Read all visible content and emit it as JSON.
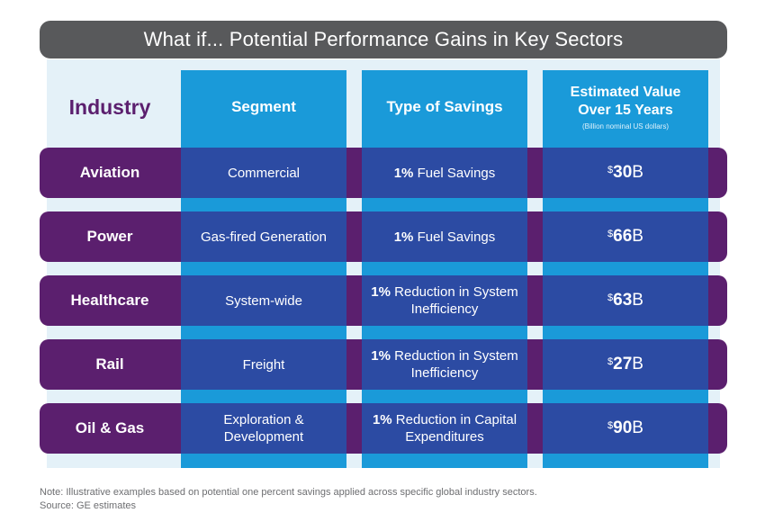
{
  "title": "What if... Potential Performance Gains in Key Sectors",
  "headers": {
    "industry": "Industry",
    "segment": "Segment",
    "savings": "Type of Savings",
    "value_line1": "Estimated Value",
    "value_line2": "Over 15 Years",
    "value_sub": "(Billion nominal US dollars)"
  },
  "rows": [
    {
      "industry": "Aviation",
      "segment": "Commercial",
      "savings_pct": "1%",
      "savings_text": "Fuel Savings",
      "currency": "$",
      "value": "30",
      "unit": "B"
    },
    {
      "industry": "Power",
      "segment": "Gas-fired Generation",
      "savings_pct": "1%",
      "savings_text": "Fuel Savings",
      "currency": "$",
      "value": "66",
      "unit": "B"
    },
    {
      "industry": "Healthcare",
      "segment": "System-wide",
      "savings_pct": "1%",
      "savings_text": "Reduction in System Inefficiency",
      "currency": "$",
      "value": "63",
      "unit": "B"
    },
    {
      "industry": "Rail",
      "segment": "Freight",
      "savings_pct": "1%",
      "savings_text": "Reduction in System Inefficiency",
      "currency": "$",
      "value": "27",
      "unit": "B"
    },
    {
      "industry": "Oil & Gas",
      "segment": "Exploration & Development",
      "savings_pct": "1%",
      "savings_text": "Reduction in Capital Expenditures",
      "currency": "$",
      "value": "90",
      "unit": "B"
    }
  ],
  "footnote": {
    "note": "Note: Illustrative examples based on potential one percent savings applied across specific global industry sectors.",
    "source": "Source: GE estimates"
  },
  "colors": {
    "title_bar": "#58595b",
    "purple": "#5b1f6e",
    "light_blue": "#1a9ad9",
    "dark_blue": "#2c4ba3",
    "panel": "#e4f1f8"
  }
}
